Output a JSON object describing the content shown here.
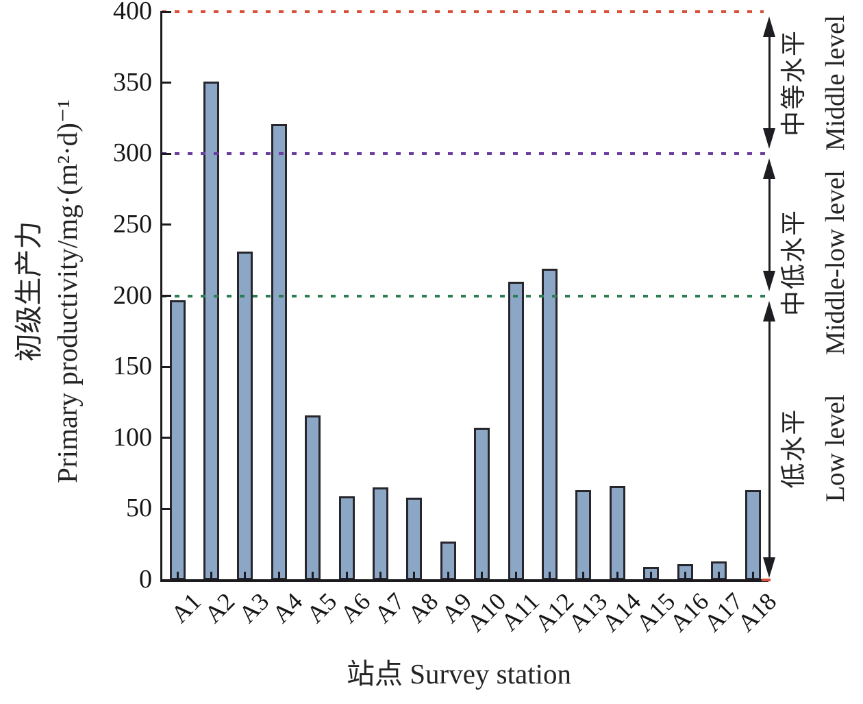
{
  "chart_data": {
    "type": "bar",
    "title": "",
    "categories": [
      "A1",
      "A2",
      "A3",
      "A4",
      "A5",
      "A6",
      "A7",
      "A8",
      "A9",
      "A10",
      "A11",
      "A12",
      "A13",
      "A14",
      "A15",
      "A16",
      "A17",
      "A18"
    ],
    "values": [
      197,
      351,
      231,
      321,
      116,
      59,
      65,
      58,
      27,
      107,
      210,
      219,
      63,
      66,
      9,
      11,
      13,
      63
    ],
    "xlabel": "站点 Survey station",
    "ylabel_zh": "初级生产力",
    "ylabel_en": "Primary productivity/mg·(m²·d)⁻¹",
    "ylim": [
      0,
      400
    ],
    "yticks": [
      0,
      50,
      100,
      150,
      200,
      250,
      300,
      350,
      400
    ],
    "grid": false,
    "legend": "none",
    "bar_color": "#8ca6c6",
    "bar_edge_color": "#26262c",
    "reference_lines": [
      {
        "value": 400,
        "color": "#d9513a",
        "style": "dotted"
      },
      {
        "value": 300,
        "color": "#6b3fa0",
        "style": "dotted"
      },
      {
        "value": 200,
        "color": "#2e7d52",
        "style": "dotted"
      }
    ],
    "level_bands": [
      {
        "range": [
          300,
          400
        ],
        "label_zh": "中等水平",
        "label_en": "Middle level"
      },
      {
        "range": [
          200,
          300
        ],
        "label_zh": "中低水平",
        "label_en": "Middle-low level"
      },
      {
        "range": [
          0,
          200
        ],
        "label_zh": "低水平",
        "label_en": "Low level"
      }
    ]
  }
}
